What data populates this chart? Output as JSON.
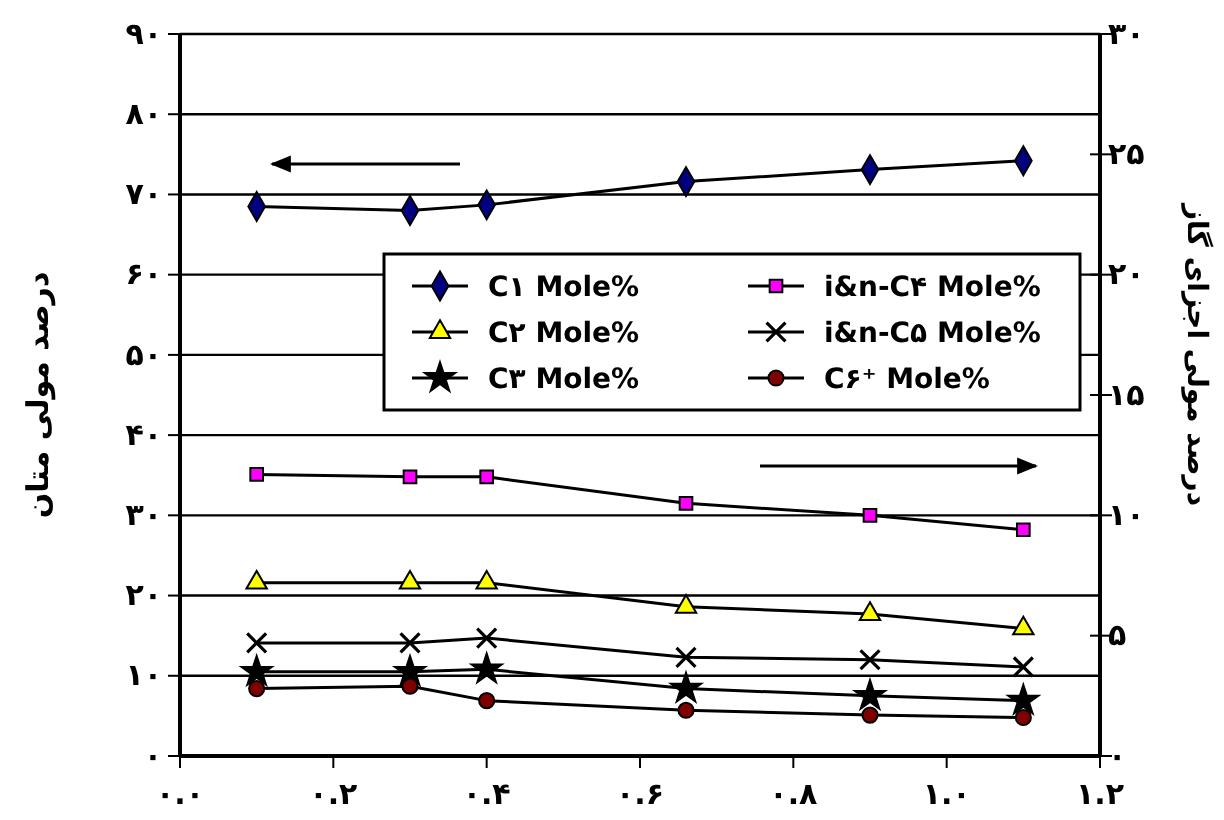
{
  "chart_data": {
    "type": "line",
    "xlabel": null,
    "ylabel": "درصد مولی متان",
    "y2label": "درصد مولی اجزای گاز",
    "x": [
      0.1,
      0.3,
      0.4,
      0.66,
      0.9,
      1.1
    ],
    "xlim": [
      0,
      1.2
    ],
    "xticks": [
      {
        "value": 0,
        "label": "۰.۰"
      },
      {
        "value": 0.2,
        "label": "۰.۲"
      },
      {
        "value": 0.4,
        "label": "۰.۴"
      },
      {
        "value": 0.6,
        "label": "۰.۶"
      },
      {
        "value": 0.8,
        "label": "۰.۸"
      },
      {
        "value": 1,
        "label": "۱.۰"
      },
      {
        "value": 1.2,
        "label": "۱.۲"
      }
    ],
    "ylim": [
      0,
      90
    ],
    "yticks": [
      {
        "value": 0,
        "label": "۰"
      },
      {
        "value": 10,
        "label": "۱۰"
      },
      {
        "value": 20,
        "label": "۲۰"
      },
      {
        "value": 30,
        "label": "۳۰"
      },
      {
        "value": 40,
        "label": "۴۰"
      },
      {
        "value": 50,
        "label": "۵۰"
      },
      {
        "value": 60,
        "label": "۶۰"
      },
      {
        "value": 70,
        "label": "۷۰"
      },
      {
        "value": 80,
        "label": "۸۰"
      },
      {
        "value": 90,
        "label": "۹۰"
      }
    ],
    "y2lim": [
      0,
      30
    ],
    "y2ticks": [
      {
        "value": 0,
        "label": "۰"
      },
      {
        "value": 5,
        "label": "۵"
      },
      {
        "value": 10,
        "label": "۱۰"
      },
      {
        "value": 15,
        "label": "۱۵"
      },
      {
        "value": 20,
        "label": "۲۰"
      },
      {
        "value": 25,
        "label": "۲۵"
      },
      {
        "value": 30,
        "label": "۳۰"
      }
    ],
    "grid": "y",
    "legend": "right",
    "series": [
      {
        "name": "C۱ Mole%",
        "color": "#000080",
        "marker": "diamond",
        "values": [
          68.5,
          68.0,
          68.7,
          71.6,
          73.1,
          74.2
        ]
      },
      {
        "name": "C۲ Mole%",
        "color": "#ffff00",
        "marker": "triangle",
        "axis": "y2",
        "values": [
          7.2,
          7.2,
          7.2,
          6.2,
          5.9,
          5.3
        ]
      },
      {
        "name": "C۳ Mole%",
        "color": "#000000",
        "marker": "star",
        "axis": "y2",
        "values": [
          3.5,
          3.5,
          3.6,
          2.8,
          2.5,
          2.3
        ]
      },
      {
        "name": "i&n-C۴ Mole%",
        "color": "#ff00ff",
        "marker": "square",
        "axis": "y2",
        "values": [
          11.7,
          11.6,
          11.6,
          10.5,
          10.0,
          9.4
        ]
      },
      {
        "name": "i&n-C۵ Mole%",
        "color": "#000000",
        "marker": "cross",
        "axis": "y2",
        "values": [
          4.7,
          4.7,
          4.9,
          4.1,
          4.0,
          3.7
        ]
      },
      {
        "name": "C۶⁺ Mole%",
        "color": "#800000",
        "marker": "circle",
        "axis": "y2",
        "values": [
          2.8,
          2.9,
          2.3,
          1.9,
          1.7,
          1.6
        ]
      }
    ]
  }
}
